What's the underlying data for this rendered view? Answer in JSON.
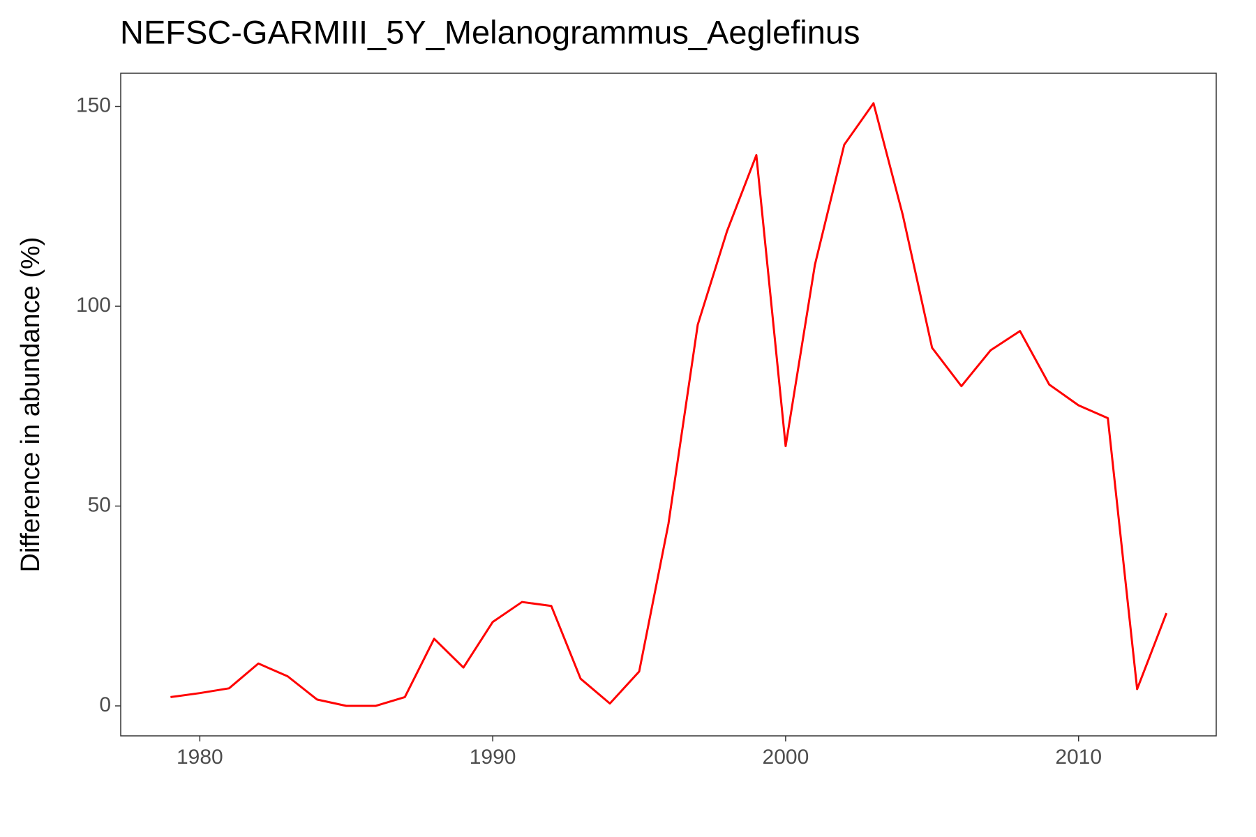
{
  "chart_data": {
    "type": "line",
    "title": "NEFSC-GARMIII_5Y_Melanogrammus_Aeglefinus",
    "y_label": "Difference in abundance (%)",
    "x": [
      1979,
      1980,
      1981,
      1982,
      1983,
      1984,
      1985,
      1986,
      1987,
      1988,
      1989,
      1990,
      1991,
      1992,
      1993,
      1994,
      1995,
      1996,
      1997,
      1998,
      1999,
      2000,
      2001,
      2002,
      2003,
      2004,
      2005,
      2006,
      2007,
      2008,
      2009,
      2010,
      2011,
      2012,
      2013
    ],
    "series": [
      {
        "color": "#ff0000",
        "values": [
          2.2,
          3.2,
          4.4,
          10.6,
          7.4,
          1.6,
          0,
          0,
          2.2,
          16.8,
          9.6,
          21,
          26,
          25,
          6.8,
          0.6,
          8.6,
          45.6,
          95.4,
          118.8,
          137.8,
          65,
          110.4,
          140.4,
          150.8,
          122.8,
          89.6,
          80,
          89,
          93.8,
          80.4,
          75.2,
          72,
          4.2,
          23.2
        ]
      }
    ],
    "xlim": [
      1977.3,
      2014.7
    ],
    "xticks": [
      1980,
      1990,
      2000,
      2010
    ],
    "ylim": [
      -7.5,
      158.3
    ],
    "yticks": [
      0,
      50,
      100,
      150
    ],
    "grid": false
  }
}
